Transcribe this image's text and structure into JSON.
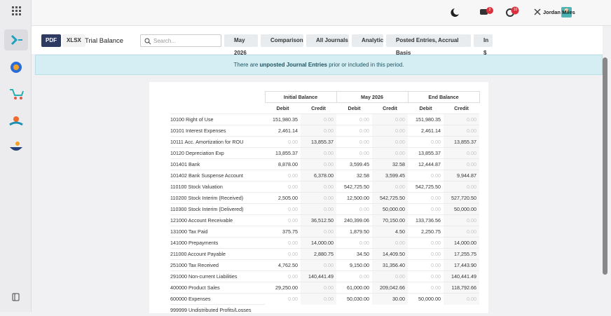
{
  "topbar": {
    "chat_badge": "2",
    "activity_badge": "10",
    "user": "Jordan Miles"
  },
  "toolbar": {
    "pdf": "PDF",
    "xlsx": "XLSX",
    "title": "Trial Balance",
    "search_placeholder": "Search...",
    "filters": [
      "May 2026",
      "Comparison",
      "All Journals",
      "Analytic",
      "Posted Entries, Accrual Basis",
      "In $"
    ]
  },
  "banner": {
    "before": "There are ",
    "link": "unposted Journal Entries",
    "after": " prior or included in this period."
  },
  "table": {
    "groups": [
      "Initial Balance",
      "May 2026",
      "End Balance"
    ],
    "subheaders": [
      "Debit",
      "Credit",
      "Debit",
      "Credit",
      "Debit",
      "Credit"
    ],
    "rows": [
      {
        "label": "10100 Right of Use",
        "cells": [
          "151,980.35",
          "0.00",
          "0.00",
          "0.00",
          "151,980.35",
          "0.00"
        ]
      },
      {
        "label": "10101 Interest Expenses",
        "cells": [
          "2,461.14",
          "0.00",
          "0.00",
          "0.00",
          "2,461.14",
          "0.00"
        ]
      },
      {
        "label": "10111 Acc. Amortization for ROU",
        "cells": [
          "0.00",
          "13,855.37",
          "0.00",
          "0.00",
          "0.00",
          "13,855.37"
        ]
      },
      {
        "label": "10120 Depreciation Exp",
        "cells": [
          "13,855.37",
          "0.00",
          "0.00",
          "0.00",
          "13,855.37",
          "0.00"
        ]
      },
      {
        "label": "101401 Bank",
        "cells": [
          "8,878.00",
          "0.00",
          "3,599.45",
          "32.58",
          "12,444.87",
          "0.00"
        ]
      },
      {
        "label": "101402 Bank Suspense Account",
        "cells": [
          "0.00",
          "6,378.00",
          "32.58",
          "3,599.45",
          "0.00",
          "9,944.87"
        ]
      },
      {
        "label": "110100 Stock Valuation",
        "cells": [
          "0.00",
          "0.00",
          "542,725.50",
          "0.00",
          "542,725.50",
          "0.00"
        ]
      },
      {
        "label": "110200 Stock Interim (Received)",
        "cells": [
          "2,505.00",
          "0.00",
          "12,500.00",
          "542,725.50",
          "0.00",
          "527,720.50"
        ]
      },
      {
        "label": "110300 Stock Interim (Delivered)",
        "cells": [
          "0.00",
          "0.00",
          "0.00",
          "50,000.00",
          "0.00",
          "50,000.00"
        ]
      },
      {
        "label": "121000 Account Receivable",
        "cells": [
          "0.00",
          "36,512.50",
          "240,399.06",
          "70,150.00",
          "133,736.56",
          "0.00"
        ]
      },
      {
        "label": "131000 Tax Paid",
        "cells": [
          "375.75",
          "0.00",
          "1,879.50",
          "4.50",
          "2,250.75",
          "0.00"
        ]
      },
      {
        "label": "141000 Prepayments",
        "cells": [
          "0.00",
          "14,000.00",
          "0.00",
          "0.00",
          "0.00",
          "14,000.00"
        ]
      },
      {
        "label": "211000 Account Payable",
        "cells": [
          "0.00",
          "2,880.75",
          "34.50",
          "14,409.50",
          "0.00",
          "17,255.75"
        ]
      },
      {
        "label": "251000 Tax Received",
        "cells": [
          "4,762.50",
          "0.00",
          "9,150.00",
          "31,356.40",
          "0.00",
          "17,443.90"
        ]
      },
      {
        "label": "291000 Non-current Liabilities",
        "cells": [
          "0.00",
          "140,441.49",
          "0.00",
          "0.00",
          "0.00",
          "140,441.49"
        ]
      },
      {
        "label": "400000 Product Sales",
        "cells": [
          "29,250.00",
          "0.00",
          "61,000.00",
          "209,042.66",
          "0.00",
          "118,792.66"
        ]
      },
      {
        "label": "600000 Expenses",
        "cells": [
          "0.00",
          "0.00",
          "50,030.00",
          "30.00",
          "50,000.00",
          "0.00"
        ]
      },
      {
        "label": "999999 Undistributed Profits/Losses"
      }
    ]
  }
}
